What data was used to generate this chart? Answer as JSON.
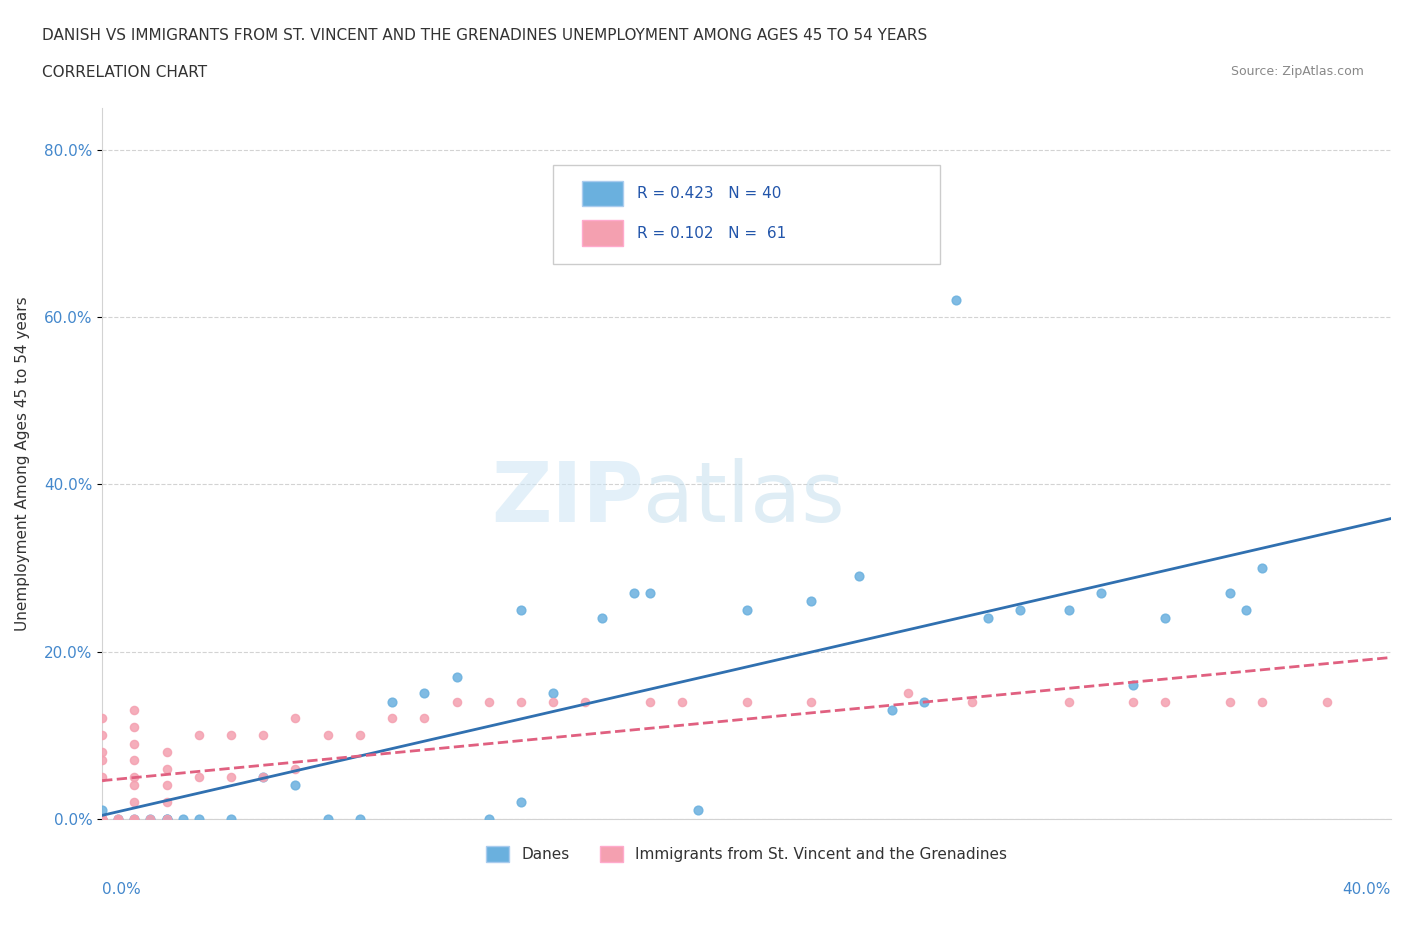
{
  "title_line1": "DANISH VS IMMIGRANTS FROM ST. VINCENT AND THE GRENADINES UNEMPLOYMENT AMONG AGES 45 TO 54 YEARS",
  "title_line2": "CORRELATION CHART",
  "source_text": "Source: ZipAtlas.com",
  "ylabel": "Unemployment Among Ages 45 to 54 years",
  "xlim": [
    0.0,
    0.4
  ],
  "ylim": [
    0.0,
    0.85
  ],
  "ytick_labels": [
    "0.0%",
    "20.0%",
    "40.0%",
    "60.0%",
    "80.0%"
  ],
  "ytick_values": [
    0.0,
    0.2,
    0.4,
    0.6,
    0.8
  ],
  "danish_color": "#6ab0de",
  "immigrant_color": "#f4a0b0",
  "danish_line_color": "#3070b0",
  "immigrant_line_color": "#e06080",
  "danish_R": 0.423,
  "danish_N": 40,
  "immigrant_R": 0.102,
  "immigrant_N": 61,
  "legend_label_danish": "Danes",
  "legend_label_immigrant": "Immigrants from St. Vincent and the Grenadines",
  "danish_x": [
    0.0,
    0.01,
    0.02,
    0.0,
    0.005,
    0.015,
    0.025,
    0.04,
    0.05,
    0.06,
    0.07,
    0.08,
    0.09,
    0.1,
    0.11,
    0.12,
    0.13,
    0.14,
    0.155,
    0.13,
    0.165,
    0.17,
    0.185,
    0.2,
    0.22,
    0.235,
    0.245,
    0.255,
    0.265,
    0.275,
    0.285,
    0.3,
    0.31,
    0.32,
    0.33,
    0.35,
    0.355,
    0.36,
    0.02,
    0.03
  ],
  "danish_y": [
    0.0,
    0.0,
    0.0,
    0.01,
    0.0,
    0.0,
    0.0,
    0.0,
    0.05,
    0.04,
    0.0,
    0.0,
    0.14,
    0.15,
    0.17,
    0.0,
    0.02,
    0.15,
    0.24,
    0.25,
    0.27,
    0.27,
    0.01,
    0.25,
    0.26,
    0.29,
    0.13,
    0.14,
    0.62,
    0.24,
    0.25,
    0.25,
    0.27,
    0.16,
    0.24,
    0.27,
    0.25,
    0.3,
    0.0,
    0.0
  ],
  "immigrant_x": [
    0.0,
    0.0,
    0.0,
    0.0,
    0.0,
    0.0,
    0.0,
    0.0,
    0.0,
    0.0,
    0.0,
    0.0,
    0.01,
    0.01,
    0.01,
    0.01,
    0.01,
    0.01,
    0.01,
    0.01,
    0.02,
    0.02,
    0.02,
    0.02,
    0.02,
    0.03,
    0.03,
    0.04,
    0.04,
    0.05,
    0.05,
    0.06,
    0.06,
    0.07,
    0.08,
    0.09,
    0.1,
    0.11,
    0.12,
    0.13,
    0.14,
    0.15,
    0.17,
    0.18,
    0.2,
    0.22,
    0.25,
    0.27,
    0.3,
    0.32,
    0.33,
    0.35,
    0.36,
    0.38,
    0.0,
    0.0,
    0.0,
    0.005,
    0.005,
    0.01,
    0.015
  ],
  "immigrant_y": [
    0.0,
    0.0,
    0.0,
    0.0,
    0.0,
    0.0,
    0.0,
    0.05,
    0.07,
    0.08,
    0.1,
    0.12,
    0.0,
    0.02,
    0.04,
    0.05,
    0.07,
    0.09,
    0.11,
    0.13,
    0.0,
    0.02,
    0.04,
    0.06,
    0.08,
    0.05,
    0.1,
    0.05,
    0.1,
    0.05,
    0.1,
    0.06,
    0.12,
    0.1,
    0.1,
    0.12,
    0.12,
    0.14,
    0.14,
    0.14,
    0.14,
    0.14,
    0.14,
    0.14,
    0.14,
    0.14,
    0.15,
    0.14,
    0.14,
    0.14,
    0.14,
    0.14,
    0.14,
    0.14,
    0.0,
    0.0,
    0.0,
    0.0,
    0.0,
    0.0,
    0.0
  ]
}
